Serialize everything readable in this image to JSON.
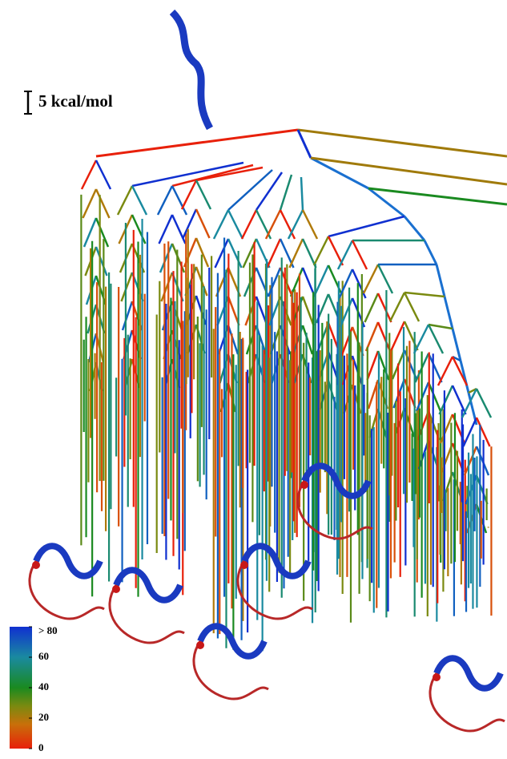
{
  "scale_bar": {
    "label": "5 kcal/mol"
  },
  "colorbar": {
    "lim": [
      0,
      80
    ],
    "ticks": [
      0,
      20,
      40,
      60,
      {
        "value": 80,
        "label": "> 80"
      }
    ]
  }
}
